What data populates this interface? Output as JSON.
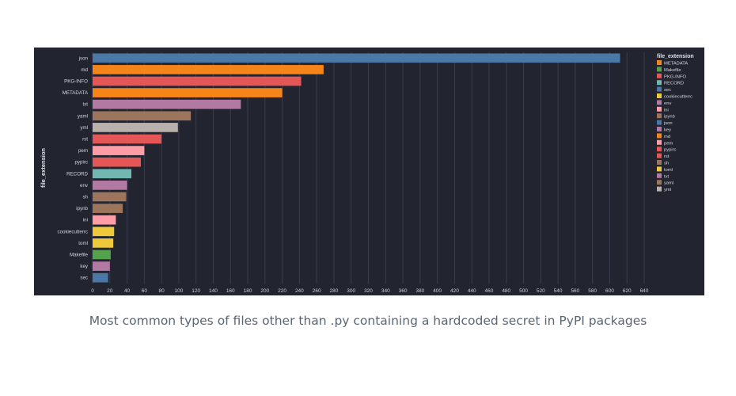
{
  "caption": "Most common types of files other than .py containing a hardcoded secret in PyPI packages",
  "chart_data": {
    "type": "bar",
    "orientation": "horizontal",
    "title": "",
    "xlabel": "",
    "ylabel": "file_extension",
    "xlim": [
      0,
      640
    ],
    "xticks": [
      0,
      20,
      40,
      60,
      80,
      100,
      120,
      140,
      160,
      180,
      200,
      220,
      240,
      260,
      280,
      300,
      320,
      340,
      360,
      380,
      400,
      420,
      440,
      460,
      480,
      500,
      520,
      540,
      560,
      580,
      600,
      620,
      640
    ],
    "grid": true,
    "legend": {
      "title": "file_extension",
      "position": "right"
    },
    "categories": [
      "json",
      "md",
      "PKG-INFO",
      "METADATA",
      "txt",
      "yaml",
      "yml",
      "rst",
      "pem",
      "pypirc",
      "RECORD",
      "env",
      "sh",
      "ipynb",
      "ini",
      "cookiecutterrc",
      "toml",
      "Makefile",
      "key",
      "sec"
    ],
    "values": [
      612,
      268,
      242,
      220,
      172,
      114,
      99,
      80,
      60,
      56,
      45,
      40,
      39,
      35,
      27,
      25,
      24,
      21,
      20,
      18
    ],
    "colors": [
      "#4c78a8",
      "#f58518",
      "#e45756",
      "#f58518",
      "#b279a2",
      "#9d755d",
      "#bab0ac",
      "#e45756",
      "#ff9da6",
      "#e45756",
      "#72b7b2",
      "#b279a2",
      "#9d755d",
      "#9d755d",
      "#ff9da6",
      "#eeca3b",
      "#eeca3b",
      "#54a24b",
      "#b279a2",
      "#4c78a8"
    ],
    "legend_entries": [
      {
        "name": "METADATA",
        "color": "#f58518"
      },
      {
        "name": "Makefile",
        "color": "#54a24b"
      },
      {
        "name": "PKG-INFO",
        "color": "#e45756"
      },
      {
        "name": "RECORD",
        "color": "#72b7b2"
      },
      {
        "name": "sec",
        "color": "#4c78a8"
      },
      {
        "name": "cookiecutterrc",
        "color": "#eeca3b"
      },
      {
        "name": "env",
        "color": "#b279a2"
      },
      {
        "name": "ini",
        "color": "#ff9da6"
      },
      {
        "name": "ipynb",
        "color": "#9d755d"
      },
      {
        "name": "json",
        "color": "#4c78a8"
      },
      {
        "name": "key",
        "color": "#b279a2"
      },
      {
        "name": "md",
        "color": "#f58518"
      },
      {
        "name": "pem",
        "color": "#ff9da6"
      },
      {
        "name": "pypirc",
        "color": "#e45756"
      },
      {
        "name": "rst",
        "color": "#e45756"
      },
      {
        "name": "sh",
        "color": "#9d755d"
      },
      {
        "name": "toml",
        "color": "#eeca3b"
      },
      {
        "name": "txt",
        "color": "#b279a2"
      },
      {
        "name": "yaml",
        "color": "#9d755d"
      },
      {
        "name": "yml",
        "color": "#bab0ac"
      }
    ]
  }
}
